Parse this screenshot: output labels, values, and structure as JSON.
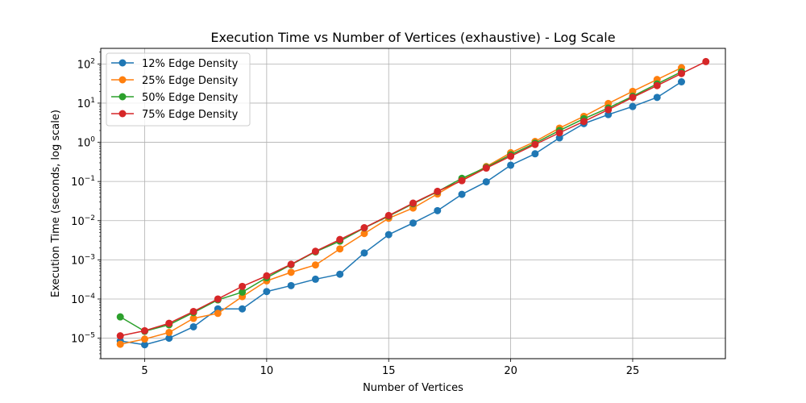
{
  "chart_data": {
    "type": "line",
    "title": "Execution Time vs Number of Vertices (exhaustive) - Log Scale",
    "xlabel": "Number of Vertices",
    "ylabel": "Execution Time (seconds, log scale)",
    "xlim": [
      3.2,
      28.8
    ],
    "ylim": [
      3e-06,
      250
    ],
    "yscale": "log",
    "grid": true,
    "legend_position": "top-left",
    "x_ticks": [
      5,
      10,
      15,
      20,
      25
    ],
    "x_tick_labels": [
      "5",
      "10",
      "15",
      "20",
      "25"
    ],
    "y_ticks": [
      1e-05,
      0.0001,
      0.001,
      0.01,
      0.1,
      1,
      10,
      100
    ],
    "y_tick_labels": [
      {
        "base": "10",
        "exp": "−5"
      },
      {
        "base": "10",
        "exp": "−4"
      },
      {
        "base": "10",
        "exp": "−3"
      },
      {
        "base": "10",
        "exp": "−2"
      },
      {
        "base": "10",
        "exp": "−1"
      },
      {
        "base": "10",
        "exp": "0"
      },
      {
        "base": "10",
        "exp": "1"
      },
      {
        "base": "10",
        "exp": "2"
      }
    ],
    "series": [
      {
        "name": "12% Edge Density",
        "color": "#1f77b4",
        "x": [
          4,
          5,
          6,
          7,
          8,
          9,
          10,
          11,
          12,
          13,
          14,
          15,
          16,
          17,
          18,
          19,
          20,
          21,
          22,
          23,
          24,
          25,
          26,
          27
        ],
        "values": [
          8.5e-06,
          6.8e-06,
          1e-05,
          1.95e-05,
          5.6e-05,
          5.6e-05,
          0.000155,
          0.00022,
          0.00032,
          0.00043,
          0.0015,
          0.0044,
          0.0087,
          0.018,
          0.047,
          0.098,
          0.26,
          0.51,
          1.3,
          3.0,
          5.1,
          8.2,
          14,
          35
        ]
      },
      {
        "name": "25% Edge Density",
        "color": "#ff7f0e",
        "x": [
          4,
          5,
          6,
          7,
          8,
          9,
          10,
          11,
          12,
          13,
          14,
          15,
          16,
          17,
          18,
          19,
          20,
          21,
          22,
          23,
          24,
          25,
          26,
          27
        ],
        "values": [
          7e-06,
          9.5e-06,
          1.4e-05,
          3.2e-05,
          4.3e-05,
          0.000115,
          0.00029,
          0.00048,
          0.00074,
          0.0019,
          0.0047,
          0.0115,
          0.021,
          0.048,
          0.11,
          0.24,
          0.54,
          1.05,
          2.3,
          4.6,
          9.8,
          20,
          40,
          80
        ]
      },
      {
        "name": "50% Edge Density",
        "color": "#2ca02c",
        "x": [
          4,
          5,
          6,
          7,
          8,
          9,
          10,
          11,
          12,
          13,
          14,
          15,
          16,
          17,
          18,
          19,
          20,
          21,
          22,
          23,
          24,
          25,
          26,
          27
        ],
        "values": [
          3.5e-05,
          1.5e-05,
          2.2e-05,
          4.5e-05,
          9.5e-05,
          0.00015,
          0.00035,
          0.00075,
          0.0016,
          0.003,
          0.0065,
          0.013,
          0.027,
          0.055,
          0.12,
          0.23,
          0.48,
          0.95,
          2.0,
          4.0,
          7.5,
          15,
          31,
          63
        ]
      },
      {
        "name": "75% Edge Density",
        "color": "#d62728",
        "x": [
          4,
          5,
          6,
          7,
          8,
          9,
          10,
          11,
          12,
          13,
          14,
          15,
          16,
          17,
          18,
          19,
          20,
          21,
          22,
          23,
          24,
          25,
          26,
          27,
          28
        ],
        "values": [
          1.15e-05,
          1.55e-05,
          2.4e-05,
          4.8e-05,
          0.0001,
          0.00021,
          0.00039,
          0.00077,
          0.00165,
          0.0033,
          0.0066,
          0.0135,
          0.028,
          0.056,
          0.105,
          0.22,
          0.44,
          0.88,
          1.75,
          3.4,
          6.8,
          14,
          28,
          57,
          115
        ]
      }
    ]
  }
}
